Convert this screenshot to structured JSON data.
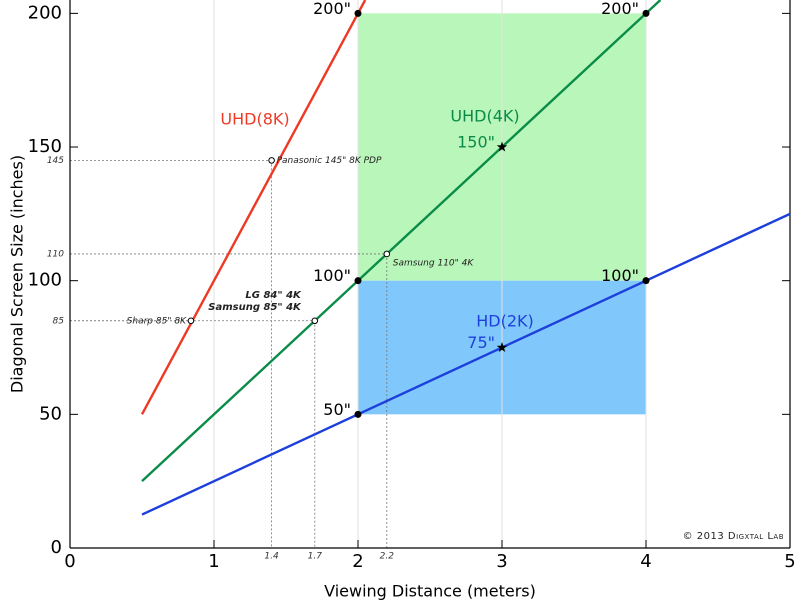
{
  "chart_data": {
    "type": "line",
    "x_label": "Viewing Distance (meters)",
    "y_label": "Diagonal Screen Size (inches)",
    "xlim": [
      0,
      5
    ],
    "ylim": [
      0,
      205
    ],
    "xticks": [
      0,
      1,
      2,
      3,
      4,
      5
    ],
    "yticks": [
      0,
      50,
      100,
      150,
      200
    ],
    "minor_xticks": [
      1.4,
      1.7,
      2.2
    ],
    "minor_yticks": [
      85,
      110,
      145
    ],
    "grid": true,
    "regions": [
      {
        "color": "#b9f6b9",
        "x": [
          2,
          4
        ],
        "y": [
          100,
          200
        ]
      },
      {
        "color": "#80c8fc",
        "x": [
          2,
          4
        ],
        "y": [
          50,
          100
        ]
      }
    ],
    "series": [
      {
        "name": "UHD(8K)",
        "color": "#ee3a24",
        "x": [
          0.5,
          2.05
        ],
        "values": [
          50,
          205
        ]
      },
      {
        "name": "UHD(4K)",
        "color": "#0a8c48",
        "x": [
          0.5,
          4.1
        ],
        "values": [
          25,
          205
        ]
      },
      {
        "name": "HD(2K)",
        "color": "#1d3fdc",
        "x": [
          0.5,
          5
        ],
        "values": [
          12.5,
          125
        ]
      }
    ],
    "points": [
      {
        "x": 2,
        "y": 200,
        "label": "200\"",
        "marker": "dot"
      },
      {
        "x": 4,
        "y": 200,
        "label": "200\"",
        "marker": "dot"
      },
      {
        "x": 2,
        "y": 100,
        "label": "100\"",
        "marker": "dot"
      },
      {
        "x": 4,
        "y": 100,
        "label": "100\"",
        "marker": "dot"
      },
      {
        "x": 2,
        "y": 50,
        "label": "50\"",
        "marker": "dot"
      },
      {
        "x": 3,
        "y": 150,
        "label": "150\"",
        "marker": "star"
      },
      {
        "x": 3,
        "y": 75,
        "label": "75\"",
        "marker": "star"
      }
    ],
    "devices": [
      {
        "x": 0.84,
        "y": 85,
        "label": [
          "Sharp 85\" 8K"
        ]
      },
      {
        "x": 1.4,
        "y": 145,
        "label": [
          "Panasonic 145\" 8K PDP"
        ]
      },
      {
        "x": 1.7,
        "y": 85,
        "label": [
          "LG 84\" 4K",
          "Samsung 85\" 4K"
        ]
      },
      {
        "x": 2.2,
        "y": 110,
        "label": [
          "Samsung 110\" 4K"
        ]
      }
    ],
    "credit": "© 2013 Digxtal Lab"
  }
}
